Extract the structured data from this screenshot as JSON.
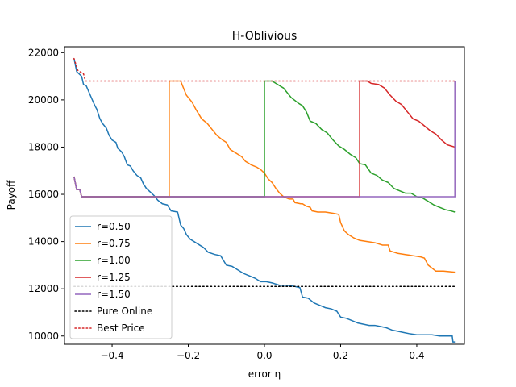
{
  "chart_data": {
    "type": "line",
    "title": "H-Oblivious",
    "xlabel": "error η",
    "ylabel": "Payoff",
    "xlim": [
      -0.525,
      0.525
    ],
    "ylim": [
      9650,
      22250
    ],
    "grid": false,
    "legend_position": "lower-left",
    "x_ticks": [
      {
        "value": -0.4,
        "label": "−0.4"
      },
      {
        "value": -0.2,
        "label": "−0.2"
      },
      {
        "value": 0.0,
        "label": "0.0"
      },
      {
        "value": 0.2,
        "label": "0.2"
      },
      {
        "value": 0.4,
        "label": "0.4"
      }
    ],
    "y_ticks": [
      {
        "value": 10000,
        "label": "10000"
      },
      {
        "value": 12000,
        "label": "12000"
      },
      {
        "value": 14000,
        "label": "14000"
      },
      {
        "value": 16000,
        "label": "16000"
      },
      {
        "value": 18000,
        "label": "18000"
      },
      {
        "value": 20000,
        "label": "20000"
      },
      {
        "value": 22000,
        "label": "22000"
      }
    ],
    "series": [
      {
        "name": "r=0.50",
        "color": "#1f77b4",
        "style": "solid",
        "points": [
          [
            -0.5,
            21750
          ],
          [
            -0.493,
            21200
          ],
          [
            -0.48,
            21000
          ],
          [
            -0.475,
            20650
          ],
          [
            -0.468,
            20600
          ],
          [
            -0.46,
            20300
          ],
          [
            -0.452,
            20000
          ],
          [
            -0.445,
            19750
          ],
          [
            -0.44,
            19600
          ],
          [
            -0.432,
            19200
          ],
          [
            -0.425,
            19000
          ],
          [
            -0.415,
            18800
          ],
          [
            -0.408,
            18500
          ],
          [
            -0.4,
            18300
          ],
          [
            -0.39,
            18200
          ],
          [
            -0.385,
            17950
          ],
          [
            -0.375,
            17800
          ],
          [
            -0.368,
            17600
          ],
          [
            -0.36,
            17250
          ],
          [
            -0.352,
            17200
          ],
          [
            -0.345,
            17000
          ],
          [
            -0.335,
            16800
          ],
          [
            -0.325,
            16700
          ],
          [
            -0.318,
            16450
          ],
          [
            -0.31,
            16250
          ],
          [
            -0.3,
            16100
          ],
          [
            -0.29,
            15950
          ],
          [
            -0.28,
            15750
          ],
          [
            -0.268,
            15600
          ],
          [
            -0.255,
            15550
          ],
          [
            -0.245,
            15300
          ],
          [
            -0.228,
            15250
          ],
          [
            -0.22,
            14700
          ],
          [
            -0.212,
            14550
          ],
          [
            -0.205,
            14300
          ],
          [
            -0.195,
            14100
          ],
          [
            -0.18,
            13950
          ],
          [
            -0.16,
            13750
          ],
          [
            -0.148,
            13550
          ],
          [
            -0.13,
            13450
          ],
          [
            -0.115,
            13400
          ],
          [
            -0.1,
            13000
          ],
          [
            -0.085,
            12950
          ],
          [
            -0.07,
            12800
          ],
          [
            -0.055,
            12650
          ],
          [
            -0.04,
            12550
          ],
          [
            -0.025,
            12450
          ],
          [
            -0.01,
            12300
          ],
          [
            0.005,
            12300
          ],
          [
            0.02,
            12250
          ],
          [
            0.04,
            12150
          ],
          [
            0.06,
            12150
          ],
          [
            0.08,
            12100
          ],
          [
            0.093,
            12050
          ],
          [
            0.1,
            11650
          ],
          [
            0.115,
            11600
          ],
          [
            0.13,
            11400
          ],
          [
            0.145,
            11300
          ],
          [
            0.16,
            11200
          ],
          [
            0.175,
            11150
          ],
          [
            0.19,
            11050
          ],
          [
            0.2,
            10800
          ],
          [
            0.215,
            10750
          ],
          [
            0.23,
            10650
          ],
          [
            0.245,
            10550
          ],
          [
            0.26,
            10500
          ],
          [
            0.275,
            10450
          ],
          [
            0.29,
            10450
          ],
          [
            0.305,
            10400
          ],
          [
            0.32,
            10350
          ],
          [
            0.335,
            10250
          ],
          [
            0.35,
            10200
          ],
          [
            0.365,
            10150
          ],
          [
            0.38,
            10100
          ],
          [
            0.4,
            10050
          ],
          [
            0.42,
            10050
          ],
          [
            0.44,
            10050
          ],
          [
            0.46,
            10000
          ],
          [
            0.48,
            10000
          ],
          [
            0.493,
            10000
          ],
          [
            0.495,
            9750
          ],
          [
            0.5,
            9750
          ]
        ]
      },
      {
        "name": "r=0.75",
        "color": "#ff7f0e",
        "style": "solid",
        "points": [
          [
            -0.5,
            16750
          ],
          [
            -0.493,
            16200
          ],
          [
            -0.485,
            16200
          ],
          [
            -0.48,
            15900
          ],
          [
            -0.26,
            15900
          ],
          [
            -0.25,
            15900
          ],
          [
            -0.25,
            20800
          ],
          [
            -0.22,
            20800
          ],
          [
            -0.205,
            20200
          ],
          [
            -0.19,
            19900
          ],
          [
            -0.18,
            19600
          ],
          [
            -0.165,
            19200
          ],
          [
            -0.15,
            19000
          ],
          [
            -0.14,
            18800
          ],
          [
            -0.125,
            18500
          ],
          [
            -0.11,
            18300
          ],
          [
            -0.1,
            18200
          ],
          [
            -0.09,
            17900
          ],
          [
            -0.08,
            17800
          ],
          [
            -0.07,
            17700
          ],
          [
            -0.06,
            17600
          ],
          [
            -0.05,
            17400
          ],
          [
            -0.035,
            17250
          ],
          [
            -0.02,
            17150
          ],
          [
            -0.01,
            17050
          ],
          [
            0.0,
            16900
          ],
          [
            0.01,
            16650
          ],
          [
            0.02,
            16500
          ],
          [
            0.03,
            16250
          ],
          [
            0.04,
            16050
          ],
          [
            0.05,
            15900
          ],
          [
            0.065,
            15800
          ],
          [
            0.075,
            15800
          ],
          [
            0.08,
            15650
          ],
          [
            0.095,
            15600
          ],
          [
            0.1,
            15600
          ],
          [
            0.11,
            15500
          ],
          [
            0.12,
            15450
          ],
          [
            0.125,
            15300
          ],
          [
            0.14,
            15250
          ],
          [
            0.16,
            15250
          ],
          [
            0.18,
            15200
          ],
          [
            0.195,
            15150
          ],
          [
            0.2,
            14800
          ],
          [
            0.21,
            14450
          ],
          [
            0.22,
            14300
          ],
          [
            0.235,
            14150
          ],
          [
            0.25,
            14050
          ],
          [
            0.27,
            14000
          ],
          [
            0.29,
            13950
          ],
          [
            0.31,
            13850
          ],
          [
            0.325,
            13850
          ],
          [
            0.33,
            13600
          ],
          [
            0.35,
            13500
          ],
          [
            0.37,
            13450
          ],
          [
            0.39,
            13400
          ],
          [
            0.41,
            13350
          ],
          [
            0.42,
            13300
          ],
          [
            0.43,
            13000
          ],
          [
            0.45,
            12750
          ],
          [
            0.47,
            12750
          ],
          [
            0.5,
            12700
          ]
        ]
      },
      {
        "name": "r=1.00",
        "color": "#2ca02c",
        "style": "solid",
        "points": [
          [
            -0.5,
            16750
          ],
          [
            -0.493,
            16200
          ],
          [
            -0.485,
            16200
          ],
          [
            -0.48,
            15900
          ],
          [
            -0.01,
            15900
          ],
          [
            0.0,
            15900
          ],
          [
            0.0,
            20800
          ],
          [
            0.02,
            20800
          ],
          [
            0.035,
            20650
          ],
          [
            0.05,
            20500
          ],
          [
            0.07,
            20100
          ],
          [
            0.09,
            19850
          ],
          [
            0.1,
            19750
          ],
          [
            0.11,
            19500
          ],
          [
            0.12,
            19100
          ],
          [
            0.135,
            19000
          ],
          [
            0.15,
            18750
          ],
          [
            0.165,
            18600
          ],
          [
            0.18,
            18300
          ],
          [
            0.195,
            18050
          ],
          [
            0.21,
            17900
          ],
          [
            0.225,
            17700
          ],
          [
            0.24,
            17550
          ],
          [
            0.25,
            17300
          ],
          [
            0.265,
            17250
          ],
          [
            0.28,
            16900
          ],
          [
            0.295,
            16800
          ],
          [
            0.31,
            16600
          ],
          [
            0.325,
            16500
          ],
          [
            0.34,
            16250
          ],
          [
            0.355,
            16150
          ],
          [
            0.37,
            16050
          ],
          [
            0.385,
            16050
          ],
          [
            0.4,
            15900
          ],
          [
            0.415,
            15850
          ],
          [
            0.43,
            15700
          ],
          [
            0.445,
            15550
          ],
          [
            0.46,
            15450
          ],
          [
            0.475,
            15350
          ],
          [
            0.49,
            15300
          ],
          [
            0.5,
            15250
          ]
        ]
      },
      {
        "name": "r=1.25",
        "color": "#d62728",
        "style": "solid",
        "points": [
          [
            -0.5,
            16750
          ],
          [
            -0.493,
            16200
          ],
          [
            -0.485,
            16200
          ],
          [
            -0.48,
            15900
          ],
          [
            0.24,
            15900
          ],
          [
            0.25,
            15900
          ],
          [
            0.25,
            20800
          ],
          [
            0.27,
            20800
          ],
          [
            0.28,
            20700
          ],
          [
            0.3,
            20650
          ],
          [
            0.315,
            20500
          ],
          [
            0.33,
            20200
          ],
          [
            0.345,
            19950
          ],
          [
            0.36,
            19800
          ],
          [
            0.375,
            19500
          ],
          [
            0.39,
            19200
          ],
          [
            0.405,
            19100
          ],
          [
            0.42,
            18900
          ],
          [
            0.435,
            18700
          ],
          [
            0.45,
            18550
          ],
          [
            0.465,
            18300
          ],
          [
            0.48,
            18100
          ],
          [
            0.49,
            18050
          ],
          [
            0.5,
            18000
          ]
        ]
      },
      {
        "name": "r=1.50",
        "color": "#9467bd",
        "style": "solid",
        "points": [
          [
            -0.5,
            16750
          ],
          [
            -0.493,
            16200
          ],
          [
            -0.485,
            16200
          ],
          [
            -0.48,
            15900
          ],
          [
            0.49,
            15900
          ],
          [
            0.5,
            15900
          ],
          [
            0.5,
            20800
          ]
        ]
      },
      {
        "name": "Pure Online",
        "color": "#000000",
        "style": "dotted",
        "points": [
          [
            -0.5,
            12100
          ],
          [
            0.5,
            12100
          ]
        ]
      },
      {
        "name": "Best Price",
        "color": "#d62728",
        "style": "dotted",
        "points": [
          [
            -0.5,
            21750
          ],
          [
            -0.49,
            21250
          ],
          [
            -0.475,
            21100
          ],
          [
            -0.47,
            20800
          ],
          [
            0.5,
            20800
          ]
        ]
      }
    ]
  }
}
